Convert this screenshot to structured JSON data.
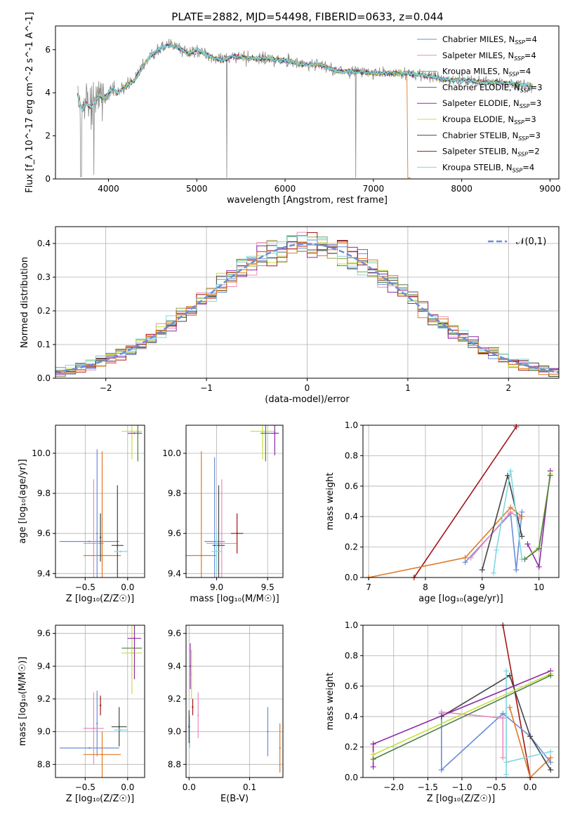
{
  "figure_title": "PLATE=2882, MJD=54498, FIBERID=0633, z=0.044",
  "colors": {
    "ChM": "#6a8dd8",
    "SaM": "#e88cbf",
    "KrM": "#9aa24a",
    "ChE": "#4f7f4f",
    "SaE": "#8e2aa8",
    "KrE": "#c6e03a",
    "ChS": "#444444",
    "SaS": "#a31616",
    "KrS": "#7fd8df",
    "orange": "#e07a27",
    "data": "#888888"
  },
  "chart_data": [
    {
      "type": "line",
      "title": "PLATE=2882, MJD=54498, FIBERID=0633, z=0.044",
      "xlabel": "wavelength [Angstrom, rest frame]",
      "ylabel": "Flux [f_λ 10^-17 erg cm^-2 s^-1 A^-1]",
      "xlim": [
        3400,
        9100
      ],
      "ylim": [
        0,
        7.1
      ],
      "xticks": [
        4000,
        5000,
        6000,
        7000,
        8000,
        9000
      ],
      "yticks": [
        0,
        2,
        4,
        6
      ],
      "legend_placement": "top-right",
      "series": [
        {
          "name": "Chabrier MILES, N_SSP=4",
          "ckey": "ChM"
        },
        {
          "name": "Salpeter MILES, N_SSP=4",
          "ckey": "SaM"
        },
        {
          "name": "Kroupa MILES, N_SSP=4",
          "ckey": "KrM"
        },
        {
          "name": "Chabrier ELODIE, N_SSP=3",
          "ckey": "ChE"
        },
        {
          "name": "Salpeter ELODIE, N_SSP=3",
          "ckey": "SaE"
        },
        {
          "name": "Kroupa ELODIE, N_SSP=3",
          "ckey": "KrE"
        },
        {
          "name": "Chabrier STELIB, N_SSP=3",
          "ckey": "ChS"
        },
        {
          "name": "Salpeter STELIB, N_SSP=2",
          "ckey": "SaS"
        },
        {
          "name": "Kroupa STELIB, N_SSP=4",
          "ckey": "KrS"
        }
      ],
      "continuum": [
        [
          3650,
          3.9
        ],
        [
          3700,
          3.2
        ],
        [
          3750,
          3.5
        ],
        [
          3800,
          3.3
        ],
        [
          3850,
          3.6
        ],
        [
          3900,
          3.9
        ],
        [
          3950,
          3.7
        ],
        [
          4000,
          4.0
        ],
        [
          4050,
          4.2
        ],
        [
          4100,
          4.0
        ],
        [
          4200,
          4.3
        ],
        [
          4300,
          4.6
        ],
        [
          4400,
          5.3
        ],
        [
          4500,
          5.8
        ],
        [
          4600,
          6.1
        ],
        [
          4700,
          6.2
        ],
        [
          4800,
          6.1
        ],
        [
          4900,
          5.8
        ],
        [
          5000,
          6.0
        ],
        [
          5100,
          5.8
        ],
        [
          5200,
          5.6
        ],
        [
          5300,
          5.5
        ],
        [
          5400,
          5.7
        ],
        [
          5600,
          5.6
        ],
        [
          5800,
          5.6
        ],
        [
          6000,
          5.5
        ],
        [
          6200,
          5.3
        ],
        [
          6400,
          5.3
        ],
        [
          6600,
          5.0
        ],
        [
          6800,
          5.0
        ],
        [
          7000,
          4.9
        ],
        [
          7200,
          4.9
        ],
        [
          7400,
          4.9
        ],
        [
          7600,
          4.8
        ],
        [
          7800,
          4.6
        ],
        [
          8000,
          4.6
        ],
        [
          8200,
          4.5
        ],
        [
          8400,
          4.5
        ],
        [
          8600,
          4.4
        ],
        [
          8800,
          4.3
        ]
      ]
    },
    {
      "type": "line",
      "xlabel": "(data-model)/error",
      "ylabel": "Normed distribution",
      "xlim": [
        -2.5,
        2.5
      ],
      "ylim": [
        0,
        0.45
      ],
      "xticks": [
        -2,
        -1,
        0,
        1,
        2
      ],
      "yticks": [
        0.0,
        0.1,
        0.2,
        0.3,
        0.4
      ],
      "grid": true,
      "legend_placement": "top-right",
      "reference_curve": {
        "name": "𝒩(0,1)",
        "mean": 0,
        "sigma": 1
      },
      "histogram": {
        "bin_width": 0.1,
        "range": [
          -2.5,
          2.5
        ],
        "series_ckeys": [
          "ChM",
          "SaM",
          "KrM",
          "ChE",
          "SaE",
          "KrE",
          "ChS",
          "SaS",
          "KrS",
          "orange"
        ]
      }
    },
    {
      "type": "scatter",
      "xlabel": "Z [log₁₀(Z/Z☉)]",
      "ylabel": "age  [log₁₀(age/yr)]",
      "xlim": [
        -0.85,
        0.2
      ],
      "ylim": [
        9.38,
        10.14
      ],
      "xticks": [
        -0.5,
        0.0
      ],
      "yticks": [
        9.4,
        9.6,
        9.8,
        10.0
      ],
      "grid": true,
      "points": [
        {
          "ckey": "ChM",
          "x": -0.45,
          "y": 9.56,
          "xerr": 0.35,
          "yerr": 0.0
        },
        {
          "ckey": "ChM",
          "x": -0.36,
          "y": 9.6,
          "xerr": 0.0,
          "yerr": 0.42
        },
        {
          "ckey": "SaM",
          "x": -0.4,
          "y": 9.55,
          "xerr": 0.12,
          "yerr": 0.32
        },
        {
          "ckey": "orange",
          "x": -0.3,
          "y": 9.49,
          "xerr": 0.22,
          "yerr": 0.52
        },
        {
          "ckey": "ChS",
          "x": -0.32,
          "y": 9.58,
          "xerr": 0.0,
          "yerr": 0.12
        },
        {
          "ckey": "ChS",
          "x": -0.12,
          "y": 9.54,
          "xerr": 0.07,
          "yerr": 0.3
        },
        {
          "ckey": "KrS",
          "x": -0.08,
          "y": 9.51,
          "xerr": 0.08,
          "yerr": 0.0
        },
        {
          "ckey": "KrE",
          "x": 0.05,
          "y": 10.11,
          "xerr": 0.12,
          "yerr": 0.14
        },
        {
          "ckey": "SaE",
          "x": 0.08,
          "y": 10.1,
          "xerr": 0.08,
          "yerr": 0.0
        },
        {
          "ckey": "ChE",
          "x": 0.12,
          "y": 10.1,
          "xerr": 0.05,
          "yerr": 0.14
        }
      ]
    },
    {
      "type": "scatter",
      "xlabel": "mass [log₁₀(M/M☉)]",
      "ylabel": "",
      "xlim": [
        8.7,
        9.65
      ],
      "ylim": [
        9.38,
        10.14
      ],
      "xticks": [
        9.0,
        9.5
      ],
      "yticks": [
        9.4,
        9.6,
        9.8,
        10.0
      ],
      "grid": true,
      "points": [
        {
          "ckey": "ChM",
          "x": 8.98,
          "y": 9.56,
          "xerr": 0.1,
          "yerr": 0.42
        },
        {
          "ckey": "SaM",
          "x": 9.05,
          "y": 9.55,
          "xerr": 0.15,
          "yerr": 0.32
        },
        {
          "ckey": "orange",
          "x": 8.85,
          "y": 9.49,
          "xerr": 0.15,
          "yerr": 0.52
        },
        {
          "ckey": "ChS",
          "x": 9.02,
          "y": 9.54,
          "xerr": 0.06,
          "yerr": 0.3
        },
        {
          "ckey": "KrS",
          "x": 9.0,
          "y": 9.51,
          "xerr": 0.05,
          "yerr": 0.1
        },
        {
          "ckey": "SaS",
          "x": 9.2,
          "y": 9.6,
          "xerr": 0.06,
          "yerr": 0.1
        },
        {
          "ckey": "KrE",
          "x": 9.45,
          "y": 10.11,
          "xerr": 0.12,
          "yerr": 0.14
        },
        {
          "ckey": "ChE",
          "x": 9.48,
          "y": 10.1,
          "xerr": 0.05,
          "yerr": 0.14
        },
        {
          "ckey": "SaE",
          "x": 9.57,
          "y": 10.1,
          "xerr": 0.04,
          "yerr": 0.11
        }
      ]
    },
    {
      "type": "line",
      "xlabel": "age  [log₁₀(age/yr)]",
      "ylabel": "mass weight",
      "xlim": [
        6.9,
        10.35
      ],
      "ylim": [
        0.0,
        1.0
      ],
      "xticks": [
        7,
        8,
        9,
        10
      ],
      "yticks": [
        0.0,
        0.2,
        0.4,
        0.6,
        0.8,
        1.0
      ],
      "grid": true,
      "series": [
        {
          "ckey": "SaS",
          "x": [
            7.8,
            9.6
          ],
          "y": [
            0.0,
            0.99
          ]
        },
        {
          "ckey": "orange",
          "x": [
            7.0,
            8.7,
            9.5,
            9.7
          ],
          "y": [
            0.0,
            0.13,
            0.46,
            0.4
          ]
        },
        {
          "ckey": "ChM",
          "x": [
            8.7,
            9.5,
            9.6,
            9.7
          ],
          "y": [
            0.1,
            0.42,
            0.05,
            0.43
          ]
        },
        {
          "ckey": "SaM",
          "x": [
            8.8,
            9.5,
            9.65
          ],
          "y": [
            0.13,
            0.43,
            0.39
          ]
        },
        {
          "ckey": "ChS",
          "x": [
            9.0,
            9.45,
            9.7
          ],
          "y": [
            0.05,
            0.67,
            0.27
          ]
        },
        {
          "ckey": "KrS",
          "x": [
            9.2,
            9.25,
            9.5,
            9.7
          ],
          "y": [
            0.03,
            0.18,
            0.7,
            0.12
          ]
        },
        {
          "ckey": "SaE",
          "x": [
            9.8,
            10.0,
            10.2
          ],
          "y": [
            0.22,
            0.07,
            0.7
          ]
        },
        {
          "ckey": "KrE",
          "x": [
            9.75,
            10.0,
            10.2
          ],
          "y": [
            0.12,
            0.2,
            0.68
          ]
        },
        {
          "ckey": "ChE",
          "x": [
            9.75,
            10.0,
            10.2
          ],
          "y": [
            0.12,
            0.19,
            0.67
          ]
        }
      ]
    },
    {
      "type": "scatter",
      "xlabel": "Z [log₁₀(Z/Z☉)]",
      "ylabel": "mass [log₁₀(M/M☉)]",
      "xlim": [
        -0.85,
        0.2
      ],
      "ylim": [
        8.72,
        9.65
      ],
      "xticks": [
        -0.5,
        0.0
      ],
      "yticks": [
        8.8,
        9.0,
        9.2,
        9.4,
        9.6
      ],
      "grid": true,
      "points": [
        {
          "ckey": "ChM",
          "x": -0.45,
          "y": 8.9,
          "xerr": 0.35,
          "yerr": 0.0
        },
        {
          "ckey": "ChM",
          "x": -0.36,
          "y": 9.05,
          "xerr": 0.0,
          "yerr": 0.2
        },
        {
          "ckey": "SaM",
          "x": -0.4,
          "y": 9.02,
          "xerr": 0.12,
          "yerr": 0.22
        },
        {
          "ckey": "orange",
          "x": -0.3,
          "y": 8.86,
          "xerr": 0.22,
          "yerr": 0.14
        },
        {
          "ckey": "SaS",
          "x": -0.32,
          "y": 9.16,
          "xerr": 0.0,
          "yerr": 0.06
        },
        {
          "ckey": "ChS",
          "x": -0.1,
          "y": 9.03,
          "xerr": 0.09,
          "yerr": 0.12
        },
        {
          "ckey": "KrS",
          "x": -0.08,
          "y": 9.01,
          "xerr": 0.08,
          "yerr": 0.0
        },
        {
          "ckey": "ChE",
          "x": 0.05,
          "y": 9.51,
          "xerr": 0.12,
          "yerr": 0.0
        },
        {
          "ckey": "KrE",
          "x": 0.05,
          "y": 9.48,
          "xerr": 0.12,
          "yerr": 0.25
        },
        {
          "ckey": "SaE",
          "x": 0.08,
          "y": 9.57,
          "xerr": 0.08,
          "yerr": 0.25
        }
      ]
    },
    {
      "type": "scatter",
      "xlabel": "E(B-V)",
      "ylabel": "",
      "xlim": [
        -0.005,
        0.155
      ],
      "ylim": [
        8.72,
        9.65
      ],
      "xticks": [
        0.0,
        0.1
      ],
      "yticks": [
        8.8,
        9.0,
        9.2,
        9.4,
        9.6
      ],
      "grid": true,
      "points": [
        {
          "ckey": "ChM",
          "x": 0.13,
          "y": 9.0,
          "xerr": 0.0,
          "yerr": 0.15
        },
        {
          "ckey": "orange",
          "x": 0.15,
          "y": 8.9,
          "xerr": 0.0,
          "yerr": 0.15
        },
        {
          "ckey": "SaM",
          "x": 0.015,
          "y": 9.1,
          "xerr": 0.0,
          "yerr": 0.14
        },
        {
          "ckey": "KrS",
          "x": 0.001,
          "y": 9.0,
          "xerr": 0.0,
          "yerr": 0.1
        },
        {
          "ckey": "ChS",
          "x": 0.0,
          "y": 9.03,
          "xerr": 0.0,
          "yerr": 0.1
        },
        {
          "ckey": "SaE",
          "x": 0.002,
          "y": 9.4,
          "xerr": 0.0,
          "yerr": 0.14
        },
        {
          "ckey": "KrE",
          "x": 0.004,
          "y": 9.35,
          "xerr": 0.0,
          "yerr": 0.15
        },
        {
          "ckey": "SaS",
          "x": 0.006,
          "y": 9.15,
          "xerr": 0.0,
          "yerr": 0.05
        }
      ]
    },
    {
      "type": "line",
      "xlabel": "Z [log₁₀(Z/Z☉)]",
      "ylabel": "mass weight",
      "xlim": [
        -2.45,
        0.42
      ],
      "ylim": [
        0.0,
        1.0
      ],
      "xticks": [
        -2.0,
        -1.5,
        -1.0,
        -0.5,
        0.0
      ],
      "yticks": [
        0.0,
        0.2,
        0.4,
        0.6,
        0.8,
        1.0
      ],
      "grid": true,
      "series": [
        {
          "ckey": "SaS",
          "x": [
            -0.4,
            0.0
          ],
          "y": [
            1.0,
            0.0
          ]
        },
        {
          "ckey": "ChM",
          "x": [
            -1.3,
            -1.3,
            -0.4,
            0.0,
            0.3
          ],
          "y": [
            0.42,
            0.05,
            0.42,
            0.27,
            0.1
          ]
        },
        {
          "ckey": "SaM",
          "x": [
            -1.3,
            -0.4,
            -0.4
          ],
          "y": [
            0.43,
            0.39,
            0.13
          ]
        },
        {
          "ckey": "orange",
          "x": [
            -0.3,
            0.0,
            0.3
          ],
          "y": [
            0.46,
            0.0,
            0.13
          ]
        },
        {
          "ckey": "ChS",
          "x": [
            -1.3,
            -0.3,
            0.0,
            0.3
          ],
          "y": [
            0.4,
            0.67,
            0.27,
            0.05
          ]
        },
        {
          "ckey": "KrS",
          "x": [
            -0.35,
            -0.35,
            -0.35,
            0.3
          ],
          "y": [
            0.7,
            0.02,
            0.1,
            0.17
          ]
        },
        {
          "ckey": "SaE",
          "x": [
            -2.3,
            -2.3,
            0.3
          ],
          "y": [
            0.07,
            0.22,
            0.7
          ]
        },
        {
          "ckey": "KrE",
          "x": [
            -2.3,
            -2.3,
            0.3
          ],
          "y": [
            0.12,
            0.15,
            0.68
          ]
        },
        {
          "ckey": "ChE",
          "x": [
            -2.3,
            0.3
          ],
          "y": [
            0.12,
            0.67
          ]
        }
      ]
    }
  ]
}
